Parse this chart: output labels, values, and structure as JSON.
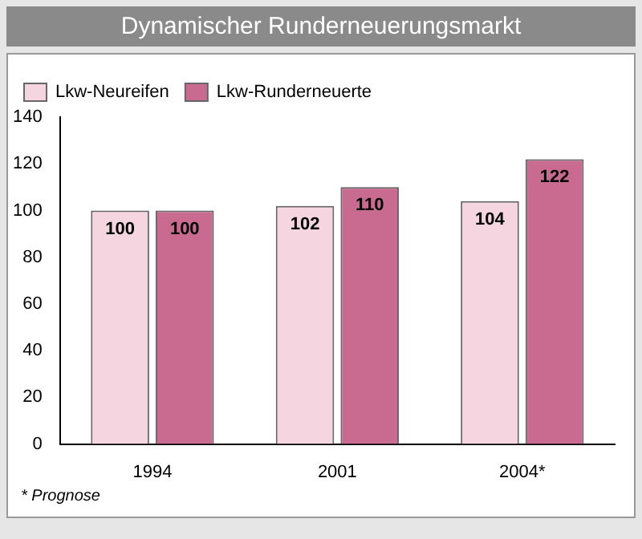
{
  "chart_data": {
    "type": "bar",
    "title": "Dynamischer Runderneuerungsmarkt",
    "categories": [
      "1994",
      "2001",
      "2004*"
    ],
    "series": [
      {
        "name": "Lkw-Neureifen",
        "color": "#f5d5e0",
        "values": [
          100,
          102,
          104
        ]
      },
      {
        "name": "Lkw-Runderneuerte",
        "color": "#c96a90",
        "values": [
          100,
          110,
          122
        ]
      }
    ],
    "ylim": [
      0,
      140
    ],
    "yticks": [
      0,
      20,
      40,
      60,
      80,
      100,
      120,
      140
    ],
    "grid": false,
    "legend": "top left",
    "data_labels": true,
    "annotations": [
      "* Prognose"
    ]
  }
}
